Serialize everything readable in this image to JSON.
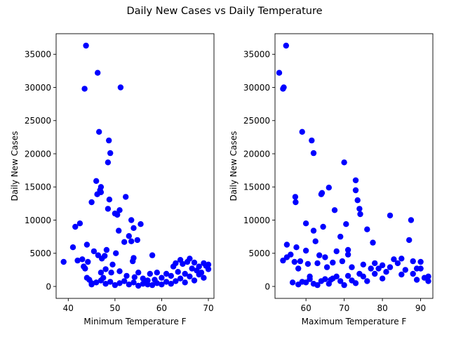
{
  "figure": {
    "title": "Daily New Cases vs Daily Temperature"
  },
  "chart_data": [
    {
      "type": "scatter",
      "title": "",
      "xlabel": "Minimum Temperature F",
      "ylabel": "Daily New Cases",
      "xlim": [
        37.4,
        71.2
      ],
      "ylim": [
        -1800,
        38100
      ],
      "xticks": [
        40,
        50,
        60,
        70
      ],
      "yticks": [
        0,
        5000,
        10000,
        15000,
        20000,
        25000,
        30000,
        35000
      ],
      "grid": false,
      "color": "#0000ff",
      "points": [
        [
          39,
          3700
        ],
        [
          41,
          5900
        ],
        [
          41.5,
          9000
        ],
        [
          42,
          3900
        ],
        [
          42.5,
          9500
        ],
        [
          43,
          4100
        ],
        [
          43.5,
          29800
        ],
        [
          43.8,
          36300
        ],
        [
          43.3,
          3000
        ],
        [
          43.6,
          2700
        ],
        [
          44,
          6300
        ],
        [
          44.2,
          3700
        ],
        [
          44,
          1300
        ],
        [
          44.5,
          1000
        ],
        [
          45,
          12700
        ],
        [
          45,
          500
        ],
        [
          45.5,
          5300
        ],
        [
          46,
          15900
        ],
        [
          46.2,
          13900
        ],
        [
          46.4,
          4700
        ],
        [
          46.6,
          23300
        ],
        [
          46.3,
          32200
        ],
        [
          46.8,
          14500
        ],
        [
          47,
          15000
        ],
        [
          47,
          14200
        ],
        [
          47.2,
          4200
        ],
        [
          47,
          2100
        ],
        [
          47.5,
          1300
        ],
        [
          47.8,
          4600
        ],
        [
          48,
          2600
        ],
        [
          48.2,
          5500
        ],
        [
          48.5,
          18700
        ],
        [
          48.7,
          22000
        ],
        [
          48.8,
          13100
        ],
        [
          49,
          20100
        ],
        [
          48.5,
          11700
        ],
        [
          49.2,
          2100
        ],
        [
          49.5,
          3300
        ],
        [
          50,
          11000
        ],
        [
          50.2,
          5000
        ],
        [
          50.5,
          10800
        ],
        [
          50.8,
          8400
        ],
        [
          51,
          11500
        ],
        [
          51.2,
          30000
        ],
        [
          51,
          2300
        ],
        [
          52,
          6700
        ],
        [
          52.3,
          13500
        ],
        [
          52.5,
          1600
        ],
        [
          53,
          7600
        ],
        [
          53.5,
          10000
        ],
        [
          53.5,
          6800
        ],
        [
          53.8,
          3800
        ],
        [
          54,
          4300
        ],
        [
          54,
          8800
        ],
        [
          54.2,
          1400
        ],
        [
          54.8,
          7000
        ],
        [
          55,
          2100
        ],
        [
          55.5,
          9400
        ],
        [
          56,
          1200
        ],
        [
          56.5,
          800
        ],
        [
          57,
          300
        ],
        [
          57.5,
          1900
        ],
        [
          58,
          4700
        ],
        [
          58.5,
          1000
        ],
        [
          59,
          2100
        ],
        [
          60,
          1300
        ],
        [
          61,
          1900
        ],
        [
          62,
          1600
        ],
        [
          62.5,
          3000
        ],
        [
          63,
          3500
        ],
        [
          63.5,
          2200
        ],
        [
          64,
          4000
        ],
        [
          64.5,
          3400
        ],
        [
          65,
          1900
        ],
        [
          65.5,
          3700
        ],
        [
          66,
          4200
        ],
        [
          66.5,
          2700
        ],
        [
          67,
          3600
        ],
        [
          67.5,
          2400
        ],
        [
          68,
          3000
        ],
        [
          68.5,
          2100
        ],
        [
          69,
          3500
        ],
        [
          69.5,
          3100
        ],
        [
          70,
          3300
        ],
        [
          70,
          2600
        ],
        [
          64,
          1200
        ],
        [
          65,
          600
        ],
        [
          66,
          1500
        ],
        [
          67,
          900
        ],
        [
          68,
          1800
        ],
        [
          69,
          1300
        ],
        [
          63,
          800
        ],
        [
          62,
          400
        ],
        [
          61,
          700
        ],
        [
          60,
          300
        ],
        [
          59,
          500
        ],
        [
          58,
          200
        ],
        [
          57,
          900
        ],
        [
          56,
          400
        ],
        [
          55,
          100
        ],
        [
          54,
          600
        ],
        [
          53,
          300
        ],
        [
          52,
          800
        ],
        [
          51,
          500
        ],
        [
          50,
          200
        ],
        [
          49,
          700
        ],
        [
          48,
          400
        ],
        [
          47,
          900
        ],
        [
          46,
          600
        ],
        [
          45,
          300
        ]
      ]
    },
    {
      "type": "scatter",
      "title": "",
      "xlabel": "Maximum Temperature F",
      "ylabel": "Daily New Cases",
      "xlim": [
        51.9,
        93.2
      ],
      "ylim": [
        -1800,
        38100
      ],
      "xticks": [
        60,
        70,
        80,
        90
      ],
      "yticks": [
        0,
        5000,
        10000,
        15000,
        20000,
        25000,
        30000,
        35000
      ],
      "grid": false,
      "color": "#0000ff",
      "points": [
        [
          53,
          32200
        ],
        [
          54,
          29800
        ],
        [
          54.2,
          30000
        ],
        [
          54.8,
          36300
        ],
        [
          54,
          3900
        ],
        [
          55,
          6300
        ],
        [
          55,
          4400
        ],
        [
          56,
          4800
        ],
        [
          56.5,
          600
        ],
        [
          57,
          3700
        ],
        [
          57.2,
          13500
        ],
        [
          57.3,
          12700
        ],
        [
          57.5,
          5900
        ],
        [
          58,
          2700
        ],
        [
          58.5,
          3800
        ],
        [
          59,
          23300
        ],
        [
          60,
          9500
        ],
        [
          60.5,
          3400
        ],
        [
          60,
          5400
        ],
        [
          61,
          1500
        ],
        [
          61.5,
          22000
        ],
        [
          62,
          20100
        ],
        [
          62,
          8400
        ],
        [
          62.5,
          6800
        ],
        [
          63,
          3500
        ],
        [
          63.5,
          4700
        ],
        [
          64,
          13900
        ],
        [
          64.2,
          14100
        ],
        [
          64.5,
          9000
        ],
        [
          65,
          4400
        ],
        [
          65.5,
          2900
        ],
        [
          66,
          14900
        ],
        [
          66.5,
          1000
        ],
        [
          67,
          3600
        ],
        [
          67.5,
          11500
        ],
        [
          68,
          5300
        ],
        [
          69,
          7500
        ],
        [
          69.5,
          3800
        ],
        [
          70,
          18700
        ],
        [
          70.5,
          9400
        ],
        [
          71,
          5500
        ],
        [
          71,
          4800
        ],
        [
          72,
          2900
        ],
        [
          73,
          16000
        ],
        [
          73,
          14500
        ],
        [
          73.5,
          13000
        ],
        [
          74,
          11700
        ],
        [
          74.2,
          10900
        ],
        [
          75,
          3300
        ],
        [
          76,
          8600
        ],
        [
          77,
          2700
        ],
        [
          77.5,
          6600
        ],
        [
          78,
          3500
        ],
        [
          80,
          3200
        ],
        [
          81,
          2200
        ],
        [
          82,
          10700
        ],
        [
          83,
          4100
        ],
        [
          85,
          4200
        ],
        [
          87,
          7000
        ],
        [
          87.5,
          10000
        ],
        [
          88,
          3800
        ],
        [
          89,
          2700
        ],
        [
          90,
          3700
        ],
        [
          91,
          1300
        ],
        [
          92,
          800
        ],
        [
          92,
          1500
        ],
        [
          75,
          1500
        ],
        [
          76,
          800
        ],
        [
          78,
          1900
        ],
        [
          79,
          2700
        ],
        [
          80,
          1200
        ],
        [
          82,
          2900
        ],
        [
          84,
          3500
        ],
        [
          85,
          1800
        ],
        [
          86,
          2500
        ],
        [
          88,
          1900
        ],
        [
          89,
          1000
        ],
        [
          90,
          2700
        ],
        [
          65,
          1100
        ],
        [
          66,
          400
        ],
        [
          68,
          1500
        ],
        [
          69,
          800
        ],
        [
          70,
          200
        ],
        [
          71,
          1600
        ],
        [
          72,
          900
        ],
        [
          73,
          500
        ],
        [
          74,
          1900
        ],
        [
          60,
          600
        ],
        [
          61,
          1100
        ],
        [
          62,
          400
        ],
        [
          63,
          200
        ],
        [
          64,
          800
        ],
        [
          67,
          1200
        ],
        [
          58,
          300
        ],
        [
          59,
          700
        ]
      ]
    }
  ]
}
